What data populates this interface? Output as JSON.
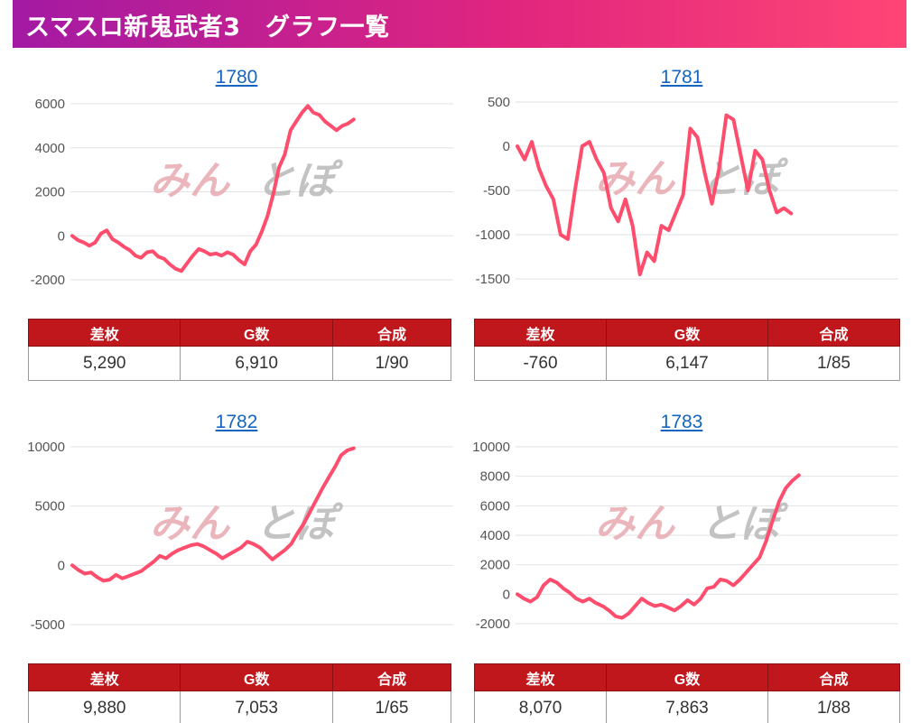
{
  "page": {
    "title": "スマスロ新鬼武者3　グラフ一覧"
  },
  "colors": {
    "line": "#ff4d6d",
    "header_start": "#a31aa3",
    "header_end": "#ff4575",
    "table_header": "#c0171c",
    "link": "#1565c0",
    "watermark_pink": "#e8a9b1",
    "watermark_gray": "#b9b9b9"
  },
  "watermark": {
    "text_left": "みん",
    "text_right": "とぽ"
  },
  "stat_headers": [
    "差枚",
    "G数",
    "合成"
  ],
  "panels": [
    {
      "number": "1780",
      "stats": [
        "5,290",
        "6,910",
        "1/90"
      ]
    },
    {
      "number": "1781",
      "stats": [
        "-760",
        "6,147",
        "1/85"
      ]
    },
    {
      "number": "1782",
      "stats": [
        "9,880",
        "7,053",
        "1/65"
      ]
    },
    {
      "number": "1783",
      "stats": [
        "8,070",
        "7,863",
        "1/88"
      ]
    }
  ],
  "chart_data": [
    {
      "type": "line",
      "title": "1780",
      "ylim": [
        -2000,
        6000
      ],
      "yticks": [
        6000,
        4000,
        2000,
        0,
        -2000
      ],
      "ytick_labels": [
        "6000",
        "4000",
        "2000",
        "0",
        "-2000"
      ],
      "grid": true,
      "series": [
        {
          "values": [
            0,
            -200,
            -300,
            -450,
            -300,
            100,
            250,
            -150,
            -300,
            -500,
            -650,
            -900,
            -1000,
            -750,
            -700,
            -950,
            -1050,
            -1300,
            -1500,
            -1600,
            -1250,
            -900,
            -600,
            -700,
            -850,
            -800,
            -900,
            -750,
            -850,
            -1100,
            -1300,
            -700,
            -400,
            200,
            900,
            1900,
            3100,
            3700,
            4800,
            5200,
            5600,
            5900,
            5600,
            5500,
            5200,
            5000,
            4800,
            5000,
            5100,
            5290
          ]
        }
      ]
    },
    {
      "type": "line",
      "title": "1781",
      "ylim": [
        -1500,
        500
      ],
      "yticks": [
        500,
        0,
        -500,
        -1000,
        -1500
      ],
      "ytick_labels": [
        "500",
        "0",
        "-500",
        "-1000",
        "-1500"
      ],
      "grid": true,
      "series": [
        {
          "values": [
            0,
            -150,
            50,
            -250,
            -450,
            -600,
            -1000,
            -1050,
            -500,
            0,
            50,
            -150,
            -300,
            -700,
            -850,
            -600,
            -900,
            -1450,
            -1200,
            -1300,
            -900,
            -950,
            -750,
            -550,
            200,
            100,
            -300,
            -650,
            -250,
            350,
            300,
            -100,
            -500,
            -50,
            -150,
            -500,
            -750,
            -700,
            -760
          ]
        }
      ]
    },
    {
      "type": "line",
      "title": "1782",
      "ylim": [
        -5000,
        10000
      ],
      "yticks": [
        10000,
        5000,
        0,
        -5000
      ],
      "ytick_labels": [
        "10000",
        "5000",
        "0",
        "-5000"
      ],
      "grid": true,
      "series": [
        {
          "values": [
            0,
            -400,
            -700,
            -600,
            -1000,
            -1300,
            -1200,
            -800,
            -1100,
            -900,
            -700,
            -500,
            -100,
            300,
            800,
            600,
            1000,
            1300,
            1500,
            1700,
            1800,
            1600,
            1300,
            1000,
            600,
            900,
            1200,
            1500,
            2000,
            1800,
            1500,
            1000,
            500,
            900,
            1300,
            1800,
            2700,
            3500,
            4500,
            5500,
            6500,
            7400,
            8300,
            9300,
            9700,
            9880
          ]
        }
      ]
    },
    {
      "type": "line",
      "title": "1783",
      "ylim": [
        -2000,
        10000
      ],
      "yticks": [
        10000,
        8000,
        6000,
        4000,
        2000,
        0,
        -2000
      ],
      "ytick_labels": [
        "10000",
        "8000",
        "6000",
        "4000",
        "2000",
        "0",
        "-2000"
      ],
      "grid": true,
      "series": [
        {
          "values": [
            0,
            -300,
            -500,
            -200,
            600,
            1000,
            800,
            400,
            100,
            -300,
            -500,
            -300,
            -600,
            -800,
            -1100,
            -1500,
            -1600,
            -1300,
            -800,
            -300,
            -600,
            -800,
            -700,
            -900,
            -1100,
            -800,
            -400,
            -700,
            -300,
            400,
            500,
            1000,
            900,
            600,
            1000,
            1500,
            2000,
            2500,
            3600,
            5000,
            6300,
            7200,
            7700,
            8070
          ]
        }
      ]
    }
  ]
}
